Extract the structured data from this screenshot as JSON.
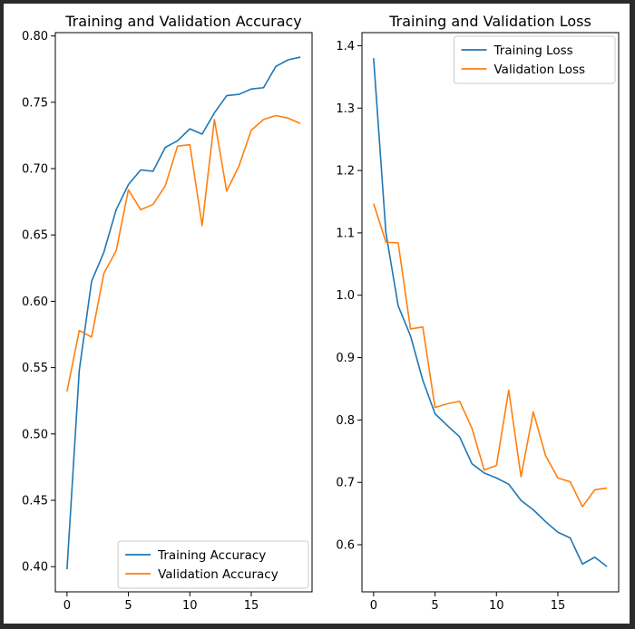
{
  "chart_data": [
    {
      "type": "line",
      "title": "Training and Validation Accuracy",
      "xlabel": "",
      "ylabel": "",
      "xlim": [
        -0.95,
        19.95
      ],
      "ylim": [
        0.381,
        0.8025
      ],
      "xticks": [
        0,
        5,
        10,
        15
      ],
      "yticks": [
        0.4,
        0.45,
        0.5,
        0.55,
        0.6,
        0.65,
        0.7,
        0.75,
        0.8
      ],
      "tick_decimals": 2,
      "grid": false,
      "legend_position": "lower-right",
      "x": [
        0,
        1,
        2,
        3,
        4,
        5,
        6,
        7,
        8,
        9,
        10,
        11,
        12,
        13,
        14,
        15,
        16,
        17,
        18,
        19
      ],
      "series": [
        {
          "name": "Training Accuracy",
          "color": "#1f77b4",
          "values": [
            0.398,
            0.548,
            0.615,
            0.637,
            0.669,
            0.688,
            0.699,
            0.698,
            0.716,
            0.721,
            0.73,
            0.726,
            0.742,
            0.755,
            0.756,
            0.76,
            0.761,
            0.777,
            0.782,
            0.784
          ]
        },
        {
          "name": "Validation Accuracy",
          "color": "#ff7f0e",
          "values": [
            0.532,
            0.578,
            0.573,
            0.621,
            0.638,
            0.684,
            0.669,
            0.673,
            0.687,
            0.717,
            0.718,
            0.657,
            0.737,
            0.683,
            0.702,
            0.729,
            0.737,
            0.74,
            0.738,
            0.734
          ]
        }
      ]
    },
    {
      "type": "line",
      "title": "Training and Validation Loss",
      "xlabel": "",
      "ylabel": "",
      "xlim": [
        -0.95,
        19.95
      ],
      "ylim": [
        0.5245,
        1.421
      ],
      "xticks": [
        0,
        5,
        10,
        15
      ],
      "yticks": [
        0.6,
        0.7,
        0.8,
        0.9,
        1.0,
        1.1,
        1.2,
        1.3,
        1.4
      ],
      "tick_decimals": 1,
      "grid": false,
      "legend_position": "upper-right",
      "x": [
        0,
        1,
        2,
        3,
        4,
        5,
        6,
        7,
        8,
        9,
        10,
        11,
        12,
        13,
        14,
        15,
        16,
        17,
        18,
        19
      ],
      "series": [
        {
          "name": "Training Loss",
          "color": "#1f77b4",
          "values": [
            1.38,
            1.1,
            0.983,
            0.935,
            0.864,
            0.81,
            0.791,
            0.773,
            0.73,
            0.715,
            0.707,
            0.697,
            0.671,
            0.656,
            0.637,
            0.62,
            0.611,
            0.569,
            0.58,
            0.565
          ]
        },
        {
          "name": "Validation Loss",
          "color": "#ff7f0e",
          "values": [
            1.147,
            1.085,
            1.084,
            0.946,
            0.949,
            0.82,
            0.826,
            0.83,
            0.787,
            0.72,
            0.727,
            0.848,
            0.709,
            0.813,
            0.743,
            0.707,
            0.701,
            0.661,
            0.688,
            0.691
          ]
        }
      ]
    }
  ]
}
